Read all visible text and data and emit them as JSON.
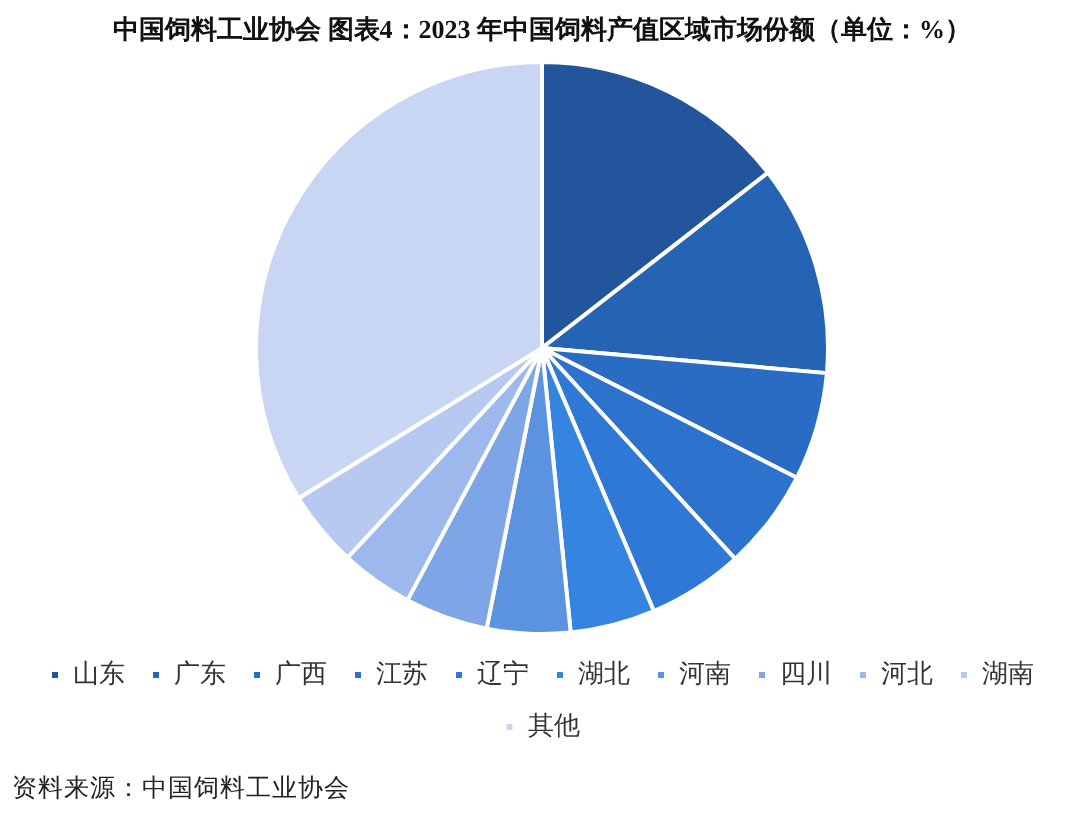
{
  "chart_data": {
    "type": "pie",
    "title": "中国饲料工业协会  图表4：2023 年中国饲料产值区域市场份额（单位：%）",
    "categories": [
      "山东",
      "广东",
      "广西",
      "江苏",
      "辽宁",
      "湖北",
      "河南",
      "四川",
      "河北",
      "湖南",
      "其他"
    ],
    "values": [
      14.5,
      11.9,
      6.1,
      5.7,
      5.4,
      4.8,
      4.7,
      4.7,
      4.1,
      4.3,
      33.8
    ],
    "colors": [
      "#22559b",
      "#2563b5",
      "#2a6cc4",
      "#2d72cc",
      "#2f78d6",
      "#3484e0",
      "#5b93e0",
      "#7ea6e6",
      "#9db8ec",
      "#b7c9f0",
      "#c9d6f3"
    ],
    "legend": "bottom",
    "annotations": [
      "资料来源：中国饲料工业协会"
    ]
  }
}
